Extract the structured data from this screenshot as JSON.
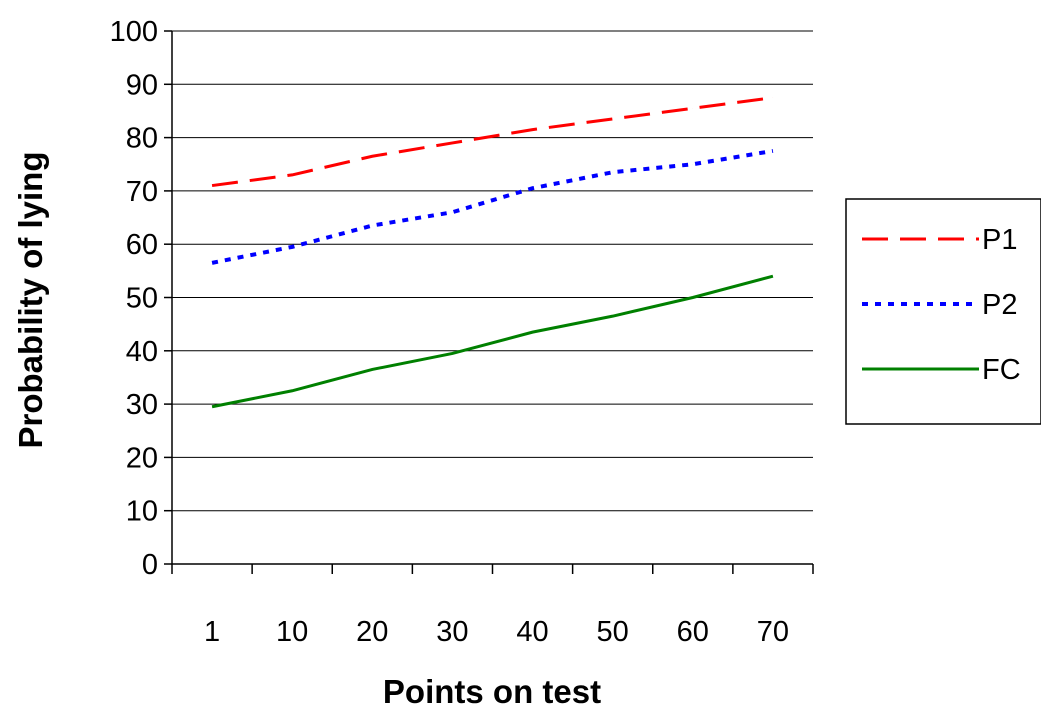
{
  "chart_data": {
    "type": "line",
    "title": "",
    "xlabel": "Points on test",
    "ylabel": "Probability of lying",
    "categories": [
      "1",
      "10",
      "20",
      "30",
      "40",
      "50",
      "60",
      "70"
    ],
    "ylim": [
      0,
      100
    ],
    "yticks": [
      "0",
      "10",
      "20",
      "30",
      "40",
      "50",
      "60",
      "70",
      "80",
      "90",
      "100"
    ],
    "grid": "horizontal",
    "legend_position": "right",
    "series": [
      {
        "name": "P1",
        "values": [
          71,
          73,
          76.5,
          79,
          81.5,
          83.5,
          85.5,
          87.5
        ],
        "color": "#ff0000",
        "style": "dashed"
      },
      {
        "name": "P2",
        "values": [
          56.5,
          59.5,
          63.5,
          66,
          70.5,
          73.5,
          75,
          77.5
        ],
        "color": "#0000ff",
        "style": "dotted"
      },
      {
        "name": "FC",
        "values": [
          29.5,
          32.5,
          36.5,
          39.5,
          43.5,
          46.5,
          50,
          54
        ],
        "color": "#008000",
        "style": "solid"
      }
    ]
  }
}
